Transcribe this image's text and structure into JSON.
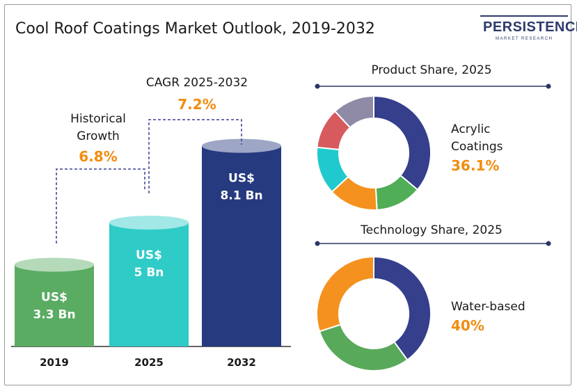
{
  "header": {
    "title": "Cool Roof Coatings Market Outlook, 2019-2032",
    "logo_main": "PERSISTENCE",
    "logo_sub": "MARKET RESEARCH"
  },
  "annotations": {
    "historical_line1": "Historical",
    "historical_line2": "Growth",
    "historical_value": "6.8%",
    "cagr_label": "CAGR 2025-2032",
    "cagr_value": "7.2%"
  },
  "chart_data": [
    {
      "type": "bar",
      "title": "",
      "categories": [
        "2019",
        "2025",
        "2032"
      ],
      "values": [
        3.3,
        5,
        8.1
      ],
      "value_labels": [
        [
          "US$",
          "3.3 Bn"
        ],
        [
          "US$",
          "5 Bn"
        ],
        [
          "US$",
          "8.1 Bn"
        ]
      ],
      "colors": [
        "#5aac63",
        "#2fcbc7",
        "#263a7f"
      ],
      "xlabel": "",
      "ylabel": ""
    },
    {
      "type": "pie",
      "title": "Product Share, 2025",
      "highlight_label": [
        "Acrylic",
        "Coatings"
      ],
      "highlight_value": "36.1%",
      "slices": [
        {
          "value": 36.1,
          "color": "#353f8c"
        },
        {
          "value": 13,
          "color": "#4fae56"
        },
        {
          "value": 14,
          "color": "#f5911e"
        },
        {
          "value": 13.5,
          "color": "#20c9cd"
        },
        {
          "value": 11.5,
          "color": "#d75a5e"
        },
        {
          "value": 11.9,
          "color": "#8f8aa5"
        }
      ]
    },
    {
      "type": "pie",
      "title": "Technology Share, 2025",
      "highlight_label": [
        "Water-based"
      ],
      "highlight_value": "40%",
      "slices": [
        {
          "value": 40,
          "color": "#353f8c"
        },
        {
          "value": 30,
          "color": "#59a95a"
        },
        {
          "value": 30,
          "color": "#f5911e"
        }
      ]
    }
  ]
}
